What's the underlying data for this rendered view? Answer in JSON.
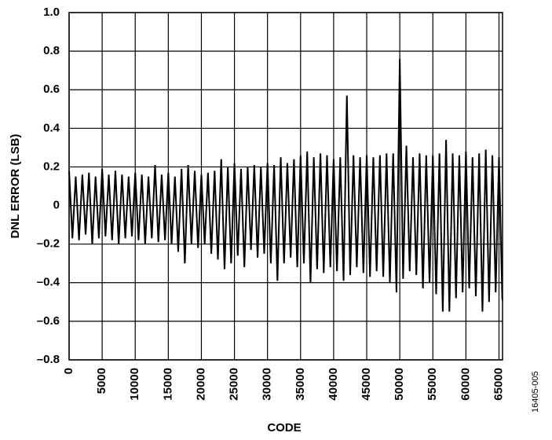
{
  "chart_data": {
    "type": "line",
    "x_label": "CODE",
    "y_label": "DNL ERROR (LSB)",
    "footnote": "16405-005",
    "xlim": [
      0,
      65536
    ],
    "ylim": [
      -0.8,
      1.0
    ],
    "xticks": [
      0,
      5000,
      10000,
      15000,
      20000,
      25000,
      30000,
      35000,
      40000,
      45000,
      50000,
      55000,
      60000,
      65000
    ],
    "yticks": [
      {
        "value": -0.8,
        "label": "–0.8"
      },
      {
        "value": -0.6,
        "label": "–0.6"
      },
      {
        "value": -0.4,
        "label": "–0.4"
      },
      {
        "value": -0.2,
        "label": "–0.2"
      },
      0,
      0.2,
      0.4,
      0.6,
      0.8,
      {
        "value": 1.0,
        "label": "1.0"
      }
    ],
    "grid": true,
    "x": [
      0,
      500,
      1000,
      1500,
      2000,
      2500,
      3000,
      3500,
      4000,
      4500,
      5000,
      5500,
      6000,
      6500,
      7000,
      7500,
      8000,
      8500,
      9000,
      9500,
      10000,
      10500,
      11000,
      11500,
      12000,
      12500,
      13000,
      13500,
      14000,
      14500,
      15000,
      15500,
      16000,
      16500,
      17000,
      17500,
      18000,
      18500,
      19000,
      19500,
      20000,
      20500,
      21000,
      21500,
      22000,
      22500,
      23000,
      23500,
      24000,
      24500,
      25000,
      25500,
      26000,
      26500,
      27000,
      27500,
      28000,
      28500,
      29000,
      29500,
      30000,
      30500,
      31000,
      31500,
      32000,
      32500,
      33000,
      33500,
      34000,
      34500,
      35000,
      35500,
      36000,
      36500,
      37000,
      37500,
      38000,
      38500,
      39000,
      39500,
      40000,
      40500,
      41000,
      41500,
      42000,
      42500,
      43000,
      43500,
      44000,
      44500,
      45000,
      45500,
      46000,
      46500,
      47000,
      47500,
      48000,
      48500,
      49000,
      49500,
      50000,
      50500,
      51000,
      51500,
      52000,
      52500,
      53000,
      53500,
      54000,
      54500,
      55000,
      55500,
      56000,
      56500,
      57000,
      57500,
      58000,
      58500,
      59000,
      59500,
      60000,
      60500,
      61000,
      61500,
      62000,
      62500,
      63000,
      63500,
      64000,
      64500,
      65000,
      65500
    ],
    "series": [
      {
        "color": "#000000",
        "values": [
          0.18,
          -0.17,
          0.15,
          -0.18,
          0.16,
          -0.15,
          0.17,
          -0.2,
          0.15,
          -0.17,
          0.19,
          -0.16,
          0.16,
          -0.18,
          0.18,
          -0.2,
          0.16,
          -0.17,
          0.15,
          -0.16,
          0.17,
          -0.18,
          0.16,
          -0.2,
          0.15,
          -0.17,
          0.21,
          -0.19,
          0.16,
          -0.18,
          0.17,
          -0.2,
          0.15,
          -0.24,
          0.19,
          -0.3,
          0.21,
          -0.2,
          0.18,
          -0.22,
          0.16,
          -0.2,
          0.17,
          -0.25,
          0.18,
          -0.28,
          0.24,
          -0.33,
          0.2,
          -0.3,
          0.22,
          -0.26,
          0.19,
          -0.32,
          0.2,
          -0.23,
          0.21,
          -0.27,
          0.2,
          -0.25,
          0.22,
          -0.3,
          0.21,
          -0.39,
          0.25,
          -0.3,
          0.22,
          -0.27,
          0.24,
          -0.32,
          0.26,
          -0.3,
          0.28,
          -0.4,
          0.25,
          -0.33,
          0.27,
          -0.35,
          0.26,
          -0.32,
          0.24,
          -0.34,
          0.25,
          -0.39,
          0.57,
          -0.36,
          0.26,
          -0.32,
          0.25,
          -0.35,
          0.26,
          -0.37,
          0.25,
          -0.34,
          0.26,
          -0.37,
          0.27,
          -0.4,
          0.27,
          -0.45,
          0.76,
          -0.38,
          0.31,
          -0.34,
          0.25,
          -0.36,
          0.27,
          -0.43,
          0.26,
          -0.4,
          0.26,
          -0.46,
          0.27,
          -0.55,
          0.34,
          -0.55,
          0.27,
          -0.48,
          0.26,
          -0.45,
          0.28,
          -0.43,
          0.25,
          -0.47,
          0.27,
          -0.55,
          0.29,
          -0.5,
          0.26,
          -0.45,
          0.25,
          -0.49
        ]
      }
    ]
  }
}
